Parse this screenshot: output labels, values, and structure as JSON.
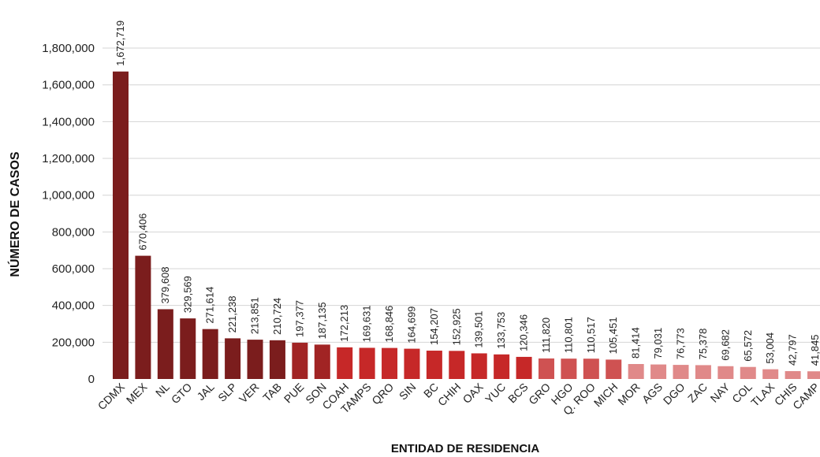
{
  "chart_data": {
    "type": "bar",
    "title": "",
    "xlabel": "ENTIDAD DE RESIDENCIA",
    "ylabel": "NÚMERO DE CASOS",
    "ylim": [
      0,
      1800000
    ],
    "yticks": [
      0,
      200000,
      400000,
      600000,
      800000,
      1000000,
      1200000,
      1400000,
      1600000,
      1800000
    ],
    "ytick_labels": [
      "0",
      "200,000",
      "400,000",
      "600,000",
      "800,000",
      "1,000,000",
      "1,200,000",
      "1,400,000",
      "1,600,000",
      "1,800,000"
    ],
    "grid": true,
    "categories": [
      "CDMX",
      "MEX",
      "NL",
      "GTO",
      "JAL",
      "SLP",
      "VER",
      "TAB",
      "PUE",
      "SON",
      "COAH",
      "TAMPS",
      "QRO",
      "SIN",
      "BC",
      "CHIH",
      "OAX",
      "YUC",
      "BCS",
      "GRO",
      "HGO",
      "Q. ROO",
      "MICH",
      "MOR",
      "AGS",
      "DGO",
      "ZAC",
      "NAY",
      "COL",
      "TLAX",
      "CHIS",
      "CAMP"
    ],
    "values": [
      1672719,
      670406,
      379608,
      329569,
      271614,
      221238,
      213851,
      210724,
      197377,
      187135,
      172213,
      169631,
      168846,
      164699,
      154207,
      152925,
      139501,
      133753,
      120346,
      111820,
      110801,
      110517,
      105451,
      81414,
      79031,
      76773,
      75378,
      69682,
      65572,
      53004,
      42797,
      41845
    ],
    "value_labels": [
      "1,672,719",
      "670,406",
      "379,608",
      "329,569",
      "271,614",
      "221,238",
      "213,851",
      "210,724",
      "197,377",
      "187,135",
      "172,213",
      "169,631",
      "168,846",
      "164,699",
      "154,207",
      "152,925",
      "139,501",
      "133,753",
      "120,346",
      "111,820",
      "110,801",
      "110,517",
      "105,451",
      "81,414",
      "79,031",
      "76,773",
      "75,378",
      "69,682",
      "65,572",
      "53,004",
      "42,797",
      "41,845"
    ],
    "bar_colors": [
      "#7b1d1d",
      "#7b1d1d",
      "#7b1d1d",
      "#7b1d1d",
      "#7b1d1d",
      "#7b1d1d",
      "#7b1d1d",
      "#7b1d1d",
      "#a12424",
      "#a12424",
      "#c62828",
      "#c62828",
      "#c62828",
      "#c62828",
      "#c62828",
      "#c62828",
      "#c62828",
      "#c62828",
      "#c62828",
      "#cf5252",
      "#cf5252",
      "#cf5252",
      "#cf5252",
      "#e08989",
      "#e08989",
      "#e08989",
      "#e08989",
      "#e08989",
      "#e08989",
      "#e08989",
      "#e08989",
      "#e08989"
    ]
  }
}
